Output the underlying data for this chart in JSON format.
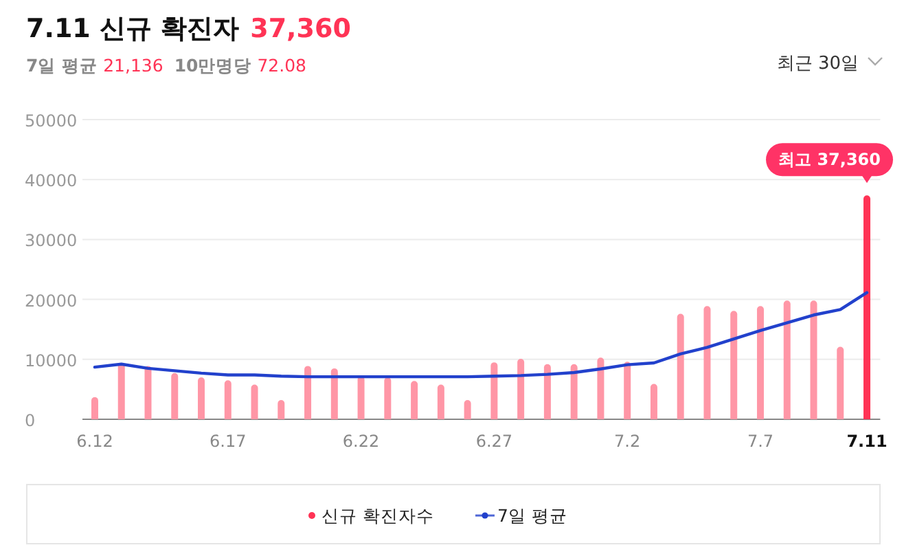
{
  "chart_data": {
    "type": "bar",
    "title": "7.11 신규 확진자",
    "categories": [
      "6.12",
      null,
      null,
      null,
      null,
      "6.17",
      null,
      null,
      null,
      null,
      "6.22",
      null,
      null,
      null,
      null,
      "6.27",
      null,
      null,
      null,
      null,
      "7.2",
      null,
      null,
      null,
      null,
      "7.7",
      null,
      null,
      null,
      "7.11"
    ],
    "series": [
      {
        "name": "신규 확진자수",
        "color": "#ff3355",
        "colors": [
          "#ff96a6",
          "#ff96a6",
          "#ff96a6",
          "#ff96a6",
          "#ff96a6",
          "#ff96a6",
          "#ff96a6",
          "#ff96a6",
          "#ff96a6",
          "#ff96a6",
          "#ff96a6",
          "#ff96a6",
          "#ff96a6",
          "#ff96a6",
          "#ff96a6",
          "#ff96a6",
          "#ff96a6",
          "#ff96a6",
          "#ff96a6",
          "#ff96a6",
          "#ff96a6",
          "#ff96a6",
          "#ff96a6",
          "#ff96a6",
          "#ff96a6",
          "#ff96a6",
          "#ff96a6",
          "#ff96a6",
          "#ff96a6",
          "#ff3355"
        ],
        "values": [
          3700,
          9400,
          8900,
          7700,
          7000,
          6500,
          5800,
          3200,
          8900,
          8500,
          7200,
          7000,
          6400,
          5800,
          3200,
          9500,
          10100,
          9200,
          9200,
          10300,
          9600,
          5900,
          17600,
          18900,
          18100,
          18900,
          19800,
          19800,
          12100,
          37360
        ]
      },
      {
        "type": "line",
        "name": "7일 평균",
        "color": "#2241cc",
        "values": [
          8700,
          9200,
          8500,
          8100,
          7700,
          7400,
          7400,
          7200,
          7100,
          7100,
          7100,
          7100,
          7100,
          7100,
          7100,
          7200,
          7300,
          7500,
          7800,
          8400,
          9100,
          9400,
          10900,
          12000,
          13400,
          14800,
          16100,
          17400,
          18300,
          21136
        ]
      }
    ],
    "ylim": [
      0,
      50000
    ],
    "yticks": [
      0,
      10000,
      20000,
      30000,
      40000,
      50000
    ],
    "grid": "y",
    "legend": "bottom",
    "annotations": [
      "37,360",
      "7일 평균",
      "21,136",
      "10만명당",
      "72.08",
      "최근 30일",
      {
        "text": "최고 37,360",
        "x": "7.11",
        "y": 37360
      }
    ]
  }
}
